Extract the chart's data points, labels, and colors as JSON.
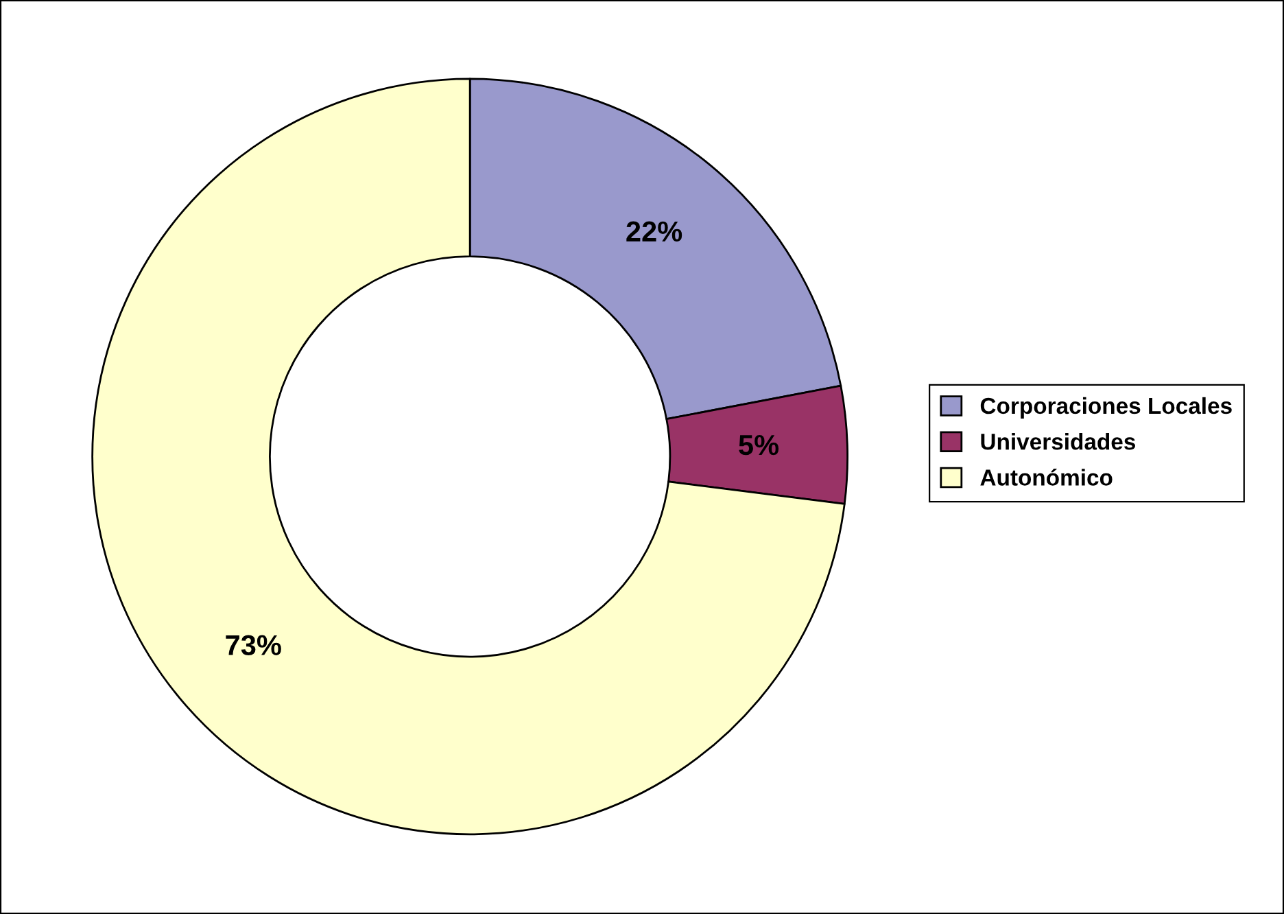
{
  "chart_data": {
    "type": "donut",
    "categories": [
      "Corporaciones Locales",
      "Universidades",
      "Autonómico"
    ],
    "values": [
      22,
      5,
      73
    ],
    "colors": [
      "#9999cc",
      "#993366",
      "#ffffcc"
    ],
    "value_labels": [
      "22%",
      "5%",
      "73%"
    ],
    "legend": "right"
  }
}
